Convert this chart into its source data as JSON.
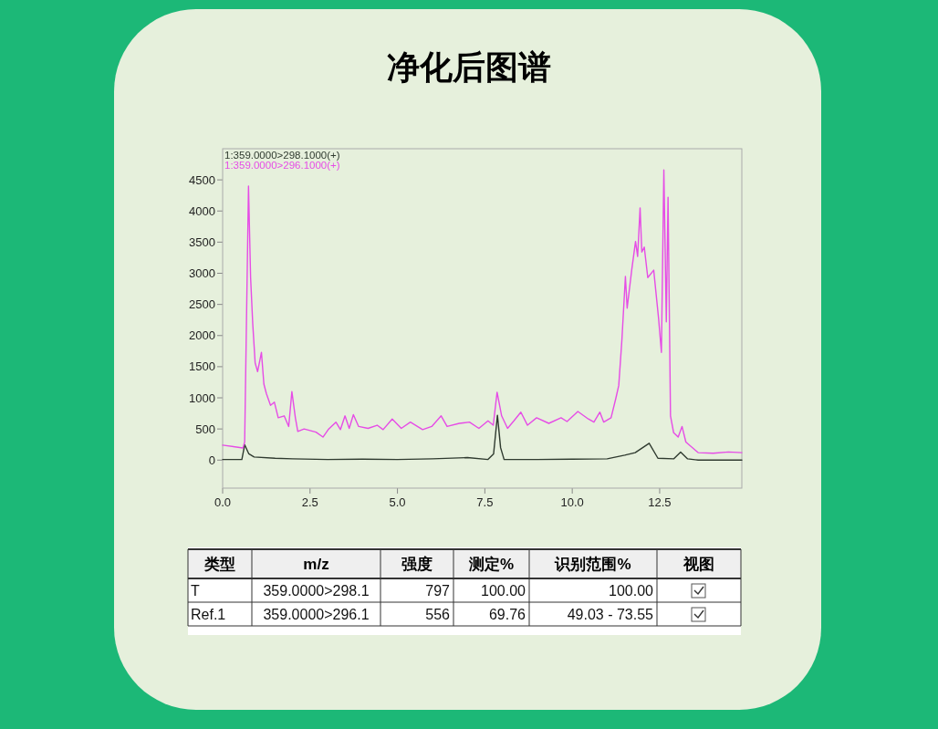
{
  "chart_data": [
    {
      "type": "line",
      "title": "净化后图谱",
      "legend": "top left",
      "grid": false,
      "marker": "none",
      "line_style": "solid",
      "xlim": [
        0,
        14.85
      ],
      "ylim": [
        -450,
        5000
      ],
      "xticks": [
        {
          "value": 0,
          "label": "0.0"
        },
        {
          "value": 2.5,
          "label": "2.5"
        },
        {
          "value": 5,
          "label": "5.0"
        },
        {
          "value": 7.5,
          "label": "7.5"
        },
        {
          "value": 10,
          "label": "10.0"
        },
        {
          "value": 12.5,
          "label": "12.5"
        }
      ],
      "yticks": [
        0,
        500,
        1000,
        1500,
        2000,
        2500,
        3000,
        3500,
        4000,
        4500
      ],
      "series": [
        {
          "name": "1:359.0000>298.1000(+)",
          "color": "#2f3a2f",
          "x": [
            0,
            0.55,
            0.63,
            0.75,
            0.9,
            1.5,
            2,
            3,
            4,
            5,
            6,
            7,
            7.59,
            7.75,
            7.86,
            7.95,
            8.05,
            9,
            10,
            11,
            11.5,
            11.8,
            12.2,
            12.45,
            12.9,
            13.1,
            13.3,
            13.6,
            14.85
          ],
          "values": [
            10,
            10,
            245,
            100,
            50,
            30,
            20,
            10,
            15,
            10,
            20,
            40,
            10,
            100,
            720,
            200,
            10,
            10,
            15,
            20,
            80,
            120,
            270,
            30,
            20,
            130,
            20,
            0,
            0
          ]
        },
        {
          "name": "1:359.0000>296.1000(+)",
          "color": "#e64ce6",
          "x": [
            0,
            0.58,
            0.63,
            0.74,
            0.8,
            0.86,
            0.93,
            1.0,
            1.11,
            1.18,
            1.25,
            1.37,
            1.48,
            1.59,
            1.76,
            1.89,
            1.98,
            2.08,
            2.15,
            2.33,
            2.67,
            2.87,
            3.02,
            3.24,
            3.37,
            3.5,
            3.62,
            3.74,
            3.89,
            4.16,
            4.42,
            4.59,
            4.85,
            5.11,
            5.37,
            5.72,
            5.98,
            6.25,
            6.42,
            6.77,
            7.06,
            7.33,
            7.59,
            7.74,
            7.85,
            7.98,
            8.15,
            8.33,
            8.53,
            8.72,
            8.98,
            9.33,
            9.68,
            9.85,
            10.16,
            10.46,
            10.62,
            10.79,
            10.9,
            11.11,
            11.25,
            11.33,
            11.42,
            11.52,
            11.57,
            11.7,
            11.81,
            11.87,
            11.94,
            11.99,
            12.06,
            12.16,
            12.33,
            12.47,
            12.55,
            12.62,
            12.69,
            12.74,
            12.81,
            12.9,
            13.03,
            13.14,
            13.25,
            13.6,
            14.03,
            14.47,
            14.85
          ],
          "values": [
            240,
            195,
            290,
            4400,
            2930,
            2200,
            1560,
            1420,
            1730,
            1220,
            1070,
            880,
            930,
            680,
            710,
            540,
            1100,
            680,
            460,
            500,
            450,
            370,
            490,
            610,
            490,
            710,
            510,
            730,
            540,
            510,
            560,
            490,
            660,
            510,
            610,
            490,
            540,
            710,
            540,
            590,
            610,
            510,
            630,
            560,
            1090,
            710,
            510,
            630,
            770,
            560,
            680,
            590,
            680,
            620,
            780,
            660,
            610,
            770,
            610,
            680,
            1000,
            1200,
            1930,
            2950,
            2440,
            3050,
            3510,
            3270,
            4050,
            3340,
            3420,
            2930,
            3050,
            2270,
            1730,
            4660,
            2220,
            4220,
            710,
            440,
            370,
            540,
            290,
            120,
            110,
            130,
            120
          ]
        }
      ]
    },
    {
      "type": "other",
      "categories": [
        "类型",
        "m/z",
        "强度",
        "测定%",
        "识别范围%",
        "视图"
      ],
      "annotations": [
        "T",
        "359.0000>298.1",
        "797",
        "100.00",
        "100.00",
        "Ref.1",
        "359.0000>296.1",
        "556",
        "69.76",
        "49.03 - 73.55"
      ]
    }
  ]
}
